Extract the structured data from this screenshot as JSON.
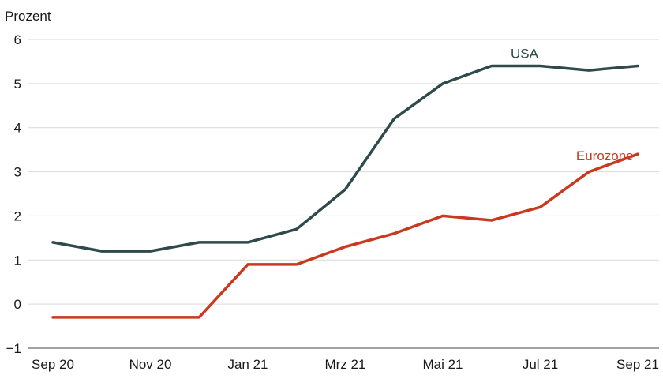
{
  "chart_data": {
    "type": "line",
    "ylabel": "Prozent",
    "ylim": [
      -1,
      6
    ],
    "y_ticks": [
      -1,
      0,
      1,
      2,
      3,
      4,
      5,
      6
    ],
    "y_tick_labels": [
      "−1",
      "0",
      "1",
      "2",
      "3",
      "4",
      "5",
      "6"
    ],
    "x": [
      "Sep 20",
      "Okt 20",
      "Nov 20",
      "Dez 20",
      "Jan 21",
      "Feb 21",
      "Mrz 21",
      "Apr 21",
      "Mai 21",
      "Jun 21",
      "Jul 21",
      "Aug 21",
      "Sep 21"
    ],
    "x_tick_labels": [
      "Sep 20",
      "Nov 20",
      "Jan 21",
      "Mrz 21",
      "Mai 21",
      "Jul 21",
      "Sep 21"
    ],
    "grid": true,
    "series": [
      {
        "name": "USA",
        "color": "#2e4a4a",
        "values": [
          1.4,
          1.2,
          1.2,
          1.4,
          1.4,
          1.7,
          2.6,
          4.2,
          5.0,
          5.4,
          5.4,
          5.3,
          5.4
        ]
      },
      {
        "name": "Eurozone",
        "color": "#c8391f",
        "values": [
          -0.3,
          -0.3,
          -0.3,
          -0.3,
          0.9,
          0.9,
          1.3,
          1.6,
          2.0,
          1.9,
          2.2,
          3.0,
          3.4
        ]
      }
    ]
  }
}
